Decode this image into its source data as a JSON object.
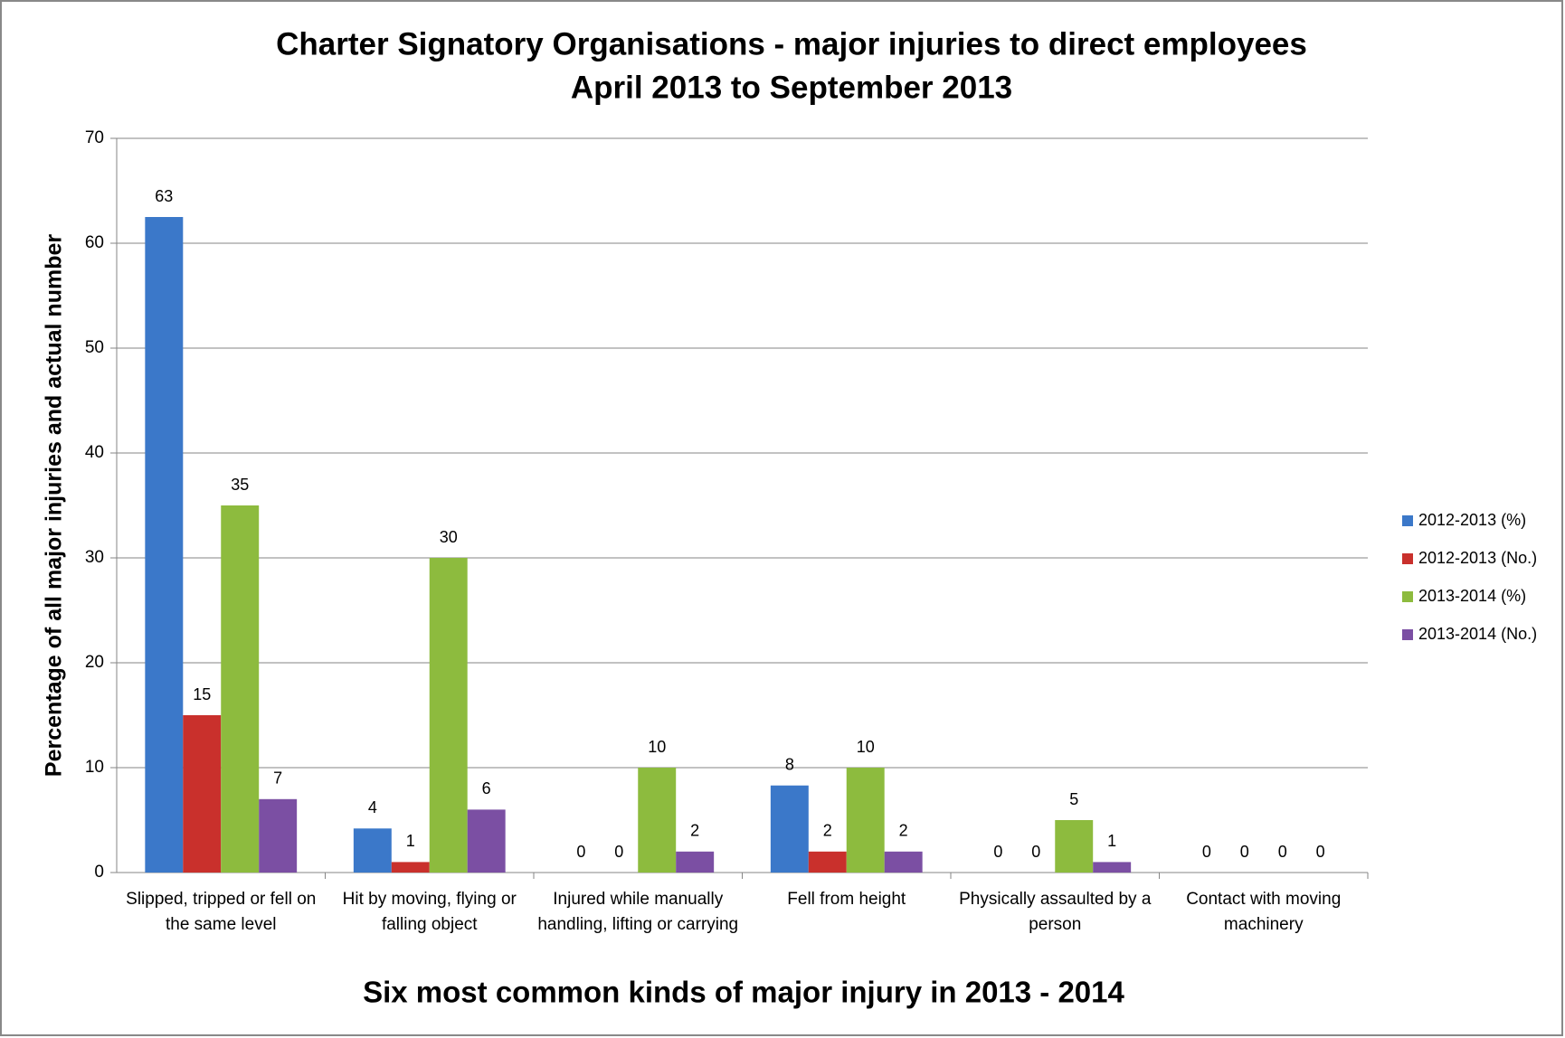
{
  "chart_data": {
    "type": "bar",
    "title": [
      "Charter Signatory Organisations - major injuries to direct employees",
      "April 2013 to September 2013"
    ],
    "x_label": "Six most common kinds of major injury in 2013 - 2014",
    "y_label": "Percentage of all major injuries and actual number",
    "categories": [
      "Slipped, tripped or fell on the same level",
      "Hit by moving, flying or falling object",
      "Injured while manually handling, lifting or carrying",
      "Fell from height",
      "Physically assaulted by a person",
      "Contact with moving machinery"
    ],
    "series": [
      {
        "name": "2012-2013 (%)",
        "color": "#3b78c9",
        "values": [
          62.5,
          4.2,
          0,
          8.3,
          0,
          0
        ],
        "value_labels": [
          "63",
          "4",
          "0",
          "8",
          "0",
          "0"
        ]
      },
      {
        "name": "2012-2013 (No.)",
        "color": "#c9302c",
        "values": [
          15,
          1,
          0,
          2,
          0,
          0
        ]
      },
      {
        "name": "2013-2014 (%)",
        "color": "#8dbb3e",
        "values": [
          35,
          30,
          10,
          10,
          5,
          0
        ]
      },
      {
        "name": "2013-2014 (No.)",
        "color": "#7b4fa3",
        "values": [
          7,
          6,
          2,
          2,
          1,
          0
        ]
      }
    ],
    "ylim": [
      0,
      70
    ],
    "yticks": [
      0,
      10,
      20,
      30,
      40,
      50,
      60,
      70
    ],
    "grid": true,
    "legend": "right"
  }
}
